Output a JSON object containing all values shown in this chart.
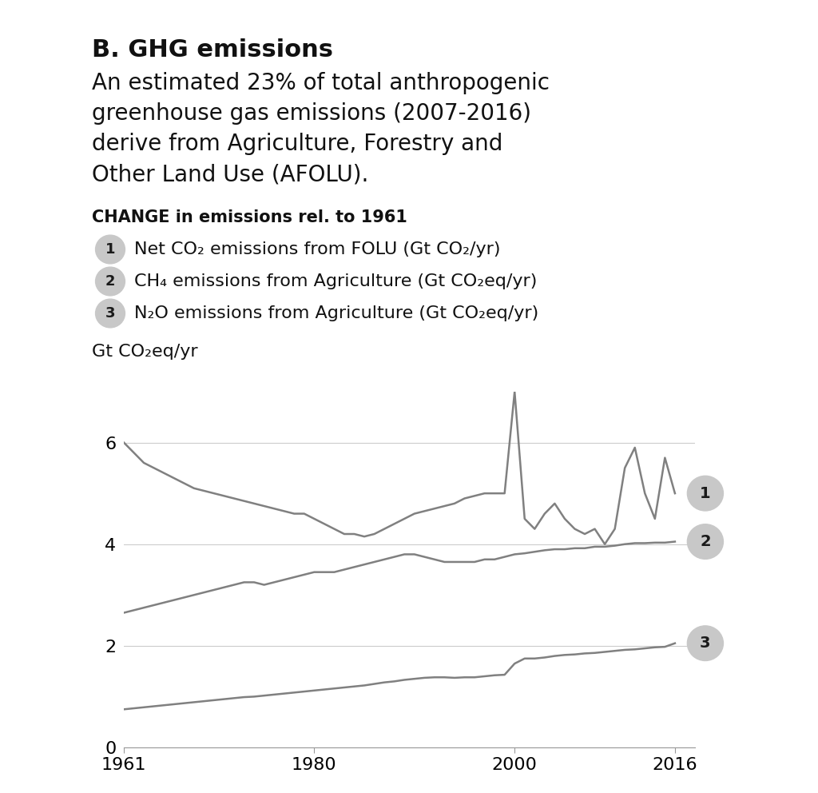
{
  "title_bold": "B. GHG emissions",
  "subtitle_lines": [
    "An estimated 23% of total anthropogenic",
    "greenhouse gas emissions (2007-2016)",
    "derive from Agriculture, Forestry and",
    "Other Land Use (AFOLU)."
  ],
  "legend_title": "CHANGE in emissions rel. to 1961",
  "legend_items": [
    {
      "num": "1",
      "text": "Net CO₂ emissions from FOLU (Gt CO₂/yr)"
    },
    {
      "num": "2",
      "text": "CH₄ emissions from Agriculture (Gt CO₂eq/yr)"
    },
    {
      "num": "3",
      "text": "N₂O emissions from Agriculture (Gt CO₂eq/yr)"
    }
  ],
  "ylabel": "Gt CO₂eq/yr",
  "yticks": [
    0,
    2,
    4,
    6
  ],
  "xticks": [
    1961,
    1980,
    2000,
    2016
  ],
  "xlim": [
    1961,
    2018
  ],
  "ylim": [
    0,
    7
  ],
  "line_color": "#808080",
  "background_color": "#ffffff",
  "series1_years": [
    1961,
    1962,
    1963,
    1964,
    1965,
    1966,
    1967,
    1968,
    1969,
    1970,
    1971,
    1972,
    1973,
    1974,
    1975,
    1976,
    1977,
    1978,
    1979,
    1980,
    1981,
    1982,
    1983,
    1984,
    1985,
    1986,
    1987,
    1988,
    1989,
    1990,
    1991,
    1992,
    1993,
    1994,
    1995,
    1996,
    1997,
    1998,
    1999,
    2000,
    2001,
    2002,
    2003,
    2004,
    2005,
    2006,
    2007,
    2008,
    2009,
    2010,
    2011,
    2012,
    2013,
    2014,
    2015,
    2016
  ],
  "series1_values": [
    6.0,
    5.8,
    5.6,
    5.5,
    5.4,
    5.3,
    5.2,
    5.1,
    5.05,
    5.0,
    4.95,
    4.9,
    4.85,
    4.8,
    4.75,
    4.7,
    4.65,
    4.6,
    4.6,
    4.5,
    4.4,
    4.3,
    4.2,
    4.2,
    4.15,
    4.2,
    4.3,
    4.4,
    4.5,
    4.6,
    4.65,
    4.7,
    4.75,
    4.8,
    4.9,
    4.95,
    5.0,
    5.0,
    5.0,
    7.0,
    4.5,
    4.3,
    4.6,
    4.8,
    4.5,
    4.3,
    4.2,
    4.3,
    4.0,
    4.3,
    5.5,
    5.9,
    5.0,
    4.5,
    5.7,
    5.0
  ],
  "series2_years": [
    1961,
    1962,
    1963,
    1964,
    1965,
    1966,
    1967,
    1968,
    1969,
    1970,
    1971,
    1972,
    1973,
    1974,
    1975,
    1976,
    1977,
    1978,
    1979,
    1980,
    1981,
    1982,
    1983,
    1984,
    1985,
    1986,
    1987,
    1988,
    1989,
    1990,
    1991,
    1992,
    1993,
    1994,
    1995,
    1996,
    1997,
    1998,
    1999,
    2000,
    2001,
    2002,
    2003,
    2004,
    2005,
    2006,
    2007,
    2008,
    2009,
    2010,
    2011,
    2012,
    2013,
    2014,
    2015,
    2016
  ],
  "series2_values": [
    2.65,
    2.7,
    2.75,
    2.8,
    2.85,
    2.9,
    2.95,
    3.0,
    3.05,
    3.1,
    3.15,
    3.2,
    3.25,
    3.25,
    3.2,
    3.25,
    3.3,
    3.35,
    3.4,
    3.45,
    3.45,
    3.45,
    3.5,
    3.55,
    3.6,
    3.65,
    3.7,
    3.75,
    3.8,
    3.8,
    3.75,
    3.7,
    3.65,
    3.65,
    3.65,
    3.65,
    3.7,
    3.7,
    3.75,
    3.8,
    3.82,
    3.85,
    3.88,
    3.9,
    3.9,
    3.92,
    3.92,
    3.95,
    3.95,
    3.97,
    4.0,
    4.02,
    4.02,
    4.03,
    4.03,
    4.05
  ],
  "series3_years": [
    1961,
    1962,
    1963,
    1964,
    1965,
    1966,
    1967,
    1968,
    1969,
    1970,
    1971,
    1972,
    1973,
    1974,
    1975,
    1976,
    1977,
    1978,
    1979,
    1980,
    1981,
    1982,
    1983,
    1984,
    1985,
    1986,
    1987,
    1988,
    1989,
    1990,
    1991,
    1992,
    1993,
    1994,
    1995,
    1996,
    1997,
    1998,
    1999,
    2000,
    2001,
    2002,
    2003,
    2004,
    2005,
    2006,
    2007,
    2008,
    2009,
    2010,
    2011,
    2012,
    2013,
    2014,
    2015,
    2016
  ],
  "series3_values": [
    0.75,
    0.77,
    0.79,
    0.81,
    0.83,
    0.85,
    0.87,
    0.89,
    0.91,
    0.93,
    0.95,
    0.97,
    0.99,
    1.0,
    1.02,
    1.04,
    1.06,
    1.08,
    1.1,
    1.12,
    1.14,
    1.16,
    1.18,
    1.2,
    1.22,
    1.25,
    1.28,
    1.3,
    1.33,
    1.35,
    1.37,
    1.38,
    1.38,
    1.37,
    1.38,
    1.38,
    1.4,
    1.42,
    1.43,
    1.65,
    1.75,
    1.75,
    1.77,
    1.8,
    1.82,
    1.83,
    1.85,
    1.86,
    1.88,
    1.9,
    1.92,
    1.93,
    1.95,
    1.97,
    1.98,
    2.05
  ],
  "circle_color": "#c8c8c8",
  "circle_text_color": "#1a1a1a",
  "grid_color": "#cccccc",
  "text_color": "#111111"
}
